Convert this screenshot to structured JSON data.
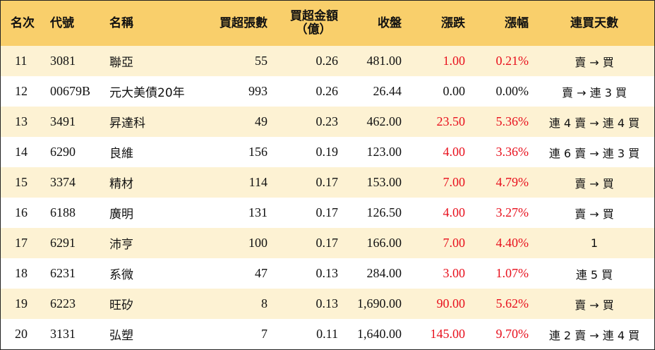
{
  "headers": {
    "rank": "名次",
    "code": "代號",
    "name": "名稱",
    "net_lots": "買超張數",
    "net_amount_line1": "買超金額",
    "net_amount_line2": "（億）",
    "close": "收盤",
    "change": "漲跌",
    "pct": "漲幅",
    "streak": "連買天數"
  },
  "colors": {
    "header_bg": "#f9cf6b",
    "odd_row_bg": "#fdf2d3",
    "up_color": "#e8101d"
  },
  "rows": [
    {
      "rank": "11",
      "code": "3081",
      "name": "聯亞",
      "lots": "55",
      "amount": "0.26",
      "close": "481.00",
      "change": "1.00",
      "pct": "0.21%",
      "streak": "賣 → 買",
      "up": true
    },
    {
      "rank": "12",
      "code": "00679B",
      "name": "元大美債20年",
      "lots": "993",
      "amount": "0.26",
      "close": "26.44",
      "change": "0.00",
      "pct": "0.00%",
      "streak": "賣 → 連 3 買",
      "up": false
    },
    {
      "rank": "13",
      "code": "3491",
      "name": "昇達科",
      "lots": "49",
      "amount": "0.23",
      "close": "462.00",
      "change": "23.50",
      "pct": "5.36%",
      "streak": "連 4 賣 → 連 4 買",
      "up": true
    },
    {
      "rank": "14",
      "code": "6290",
      "name": "良維",
      "lots": "156",
      "amount": "0.19",
      "close": "123.00",
      "change": "4.00",
      "pct": "3.36%",
      "streak": "連 6 賣 → 連 3 買",
      "up": true
    },
    {
      "rank": "15",
      "code": "3374",
      "name": "精材",
      "lots": "114",
      "amount": "0.17",
      "close": "153.00",
      "change": "7.00",
      "pct": "4.79%",
      "streak": "賣 → 買",
      "up": true
    },
    {
      "rank": "16",
      "code": "6188",
      "name": "廣明",
      "lots": "131",
      "amount": "0.17",
      "close": "126.50",
      "change": "4.00",
      "pct": "3.27%",
      "streak": "賣 → 買",
      "up": true
    },
    {
      "rank": "17",
      "code": "6291",
      "name": "沛亨",
      "lots": "100",
      "amount": "0.17",
      "close": "166.00",
      "change": "7.00",
      "pct": "4.40%",
      "streak": "1",
      "up": true
    },
    {
      "rank": "18",
      "code": "6231",
      "name": "系微",
      "lots": "47",
      "amount": "0.13",
      "close": "284.00",
      "change": "3.00",
      "pct": "1.07%",
      "streak": "連 5 買",
      "up": true
    },
    {
      "rank": "19",
      "code": "6223",
      "name": "旺矽",
      "lots": "8",
      "amount": "0.13",
      "close": "1,690.00",
      "change": "90.00",
      "pct": "5.62%",
      "streak": "賣 → 買",
      "up": true
    },
    {
      "rank": "20",
      "code": "3131",
      "name": "弘塑",
      "lots": "7",
      "amount": "0.11",
      "close": "1,640.00",
      "change": "145.00",
      "pct": "9.70%",
      "streak": "連 2 賣 → 連 4 買",
      "up": true
    }
  ]
}
